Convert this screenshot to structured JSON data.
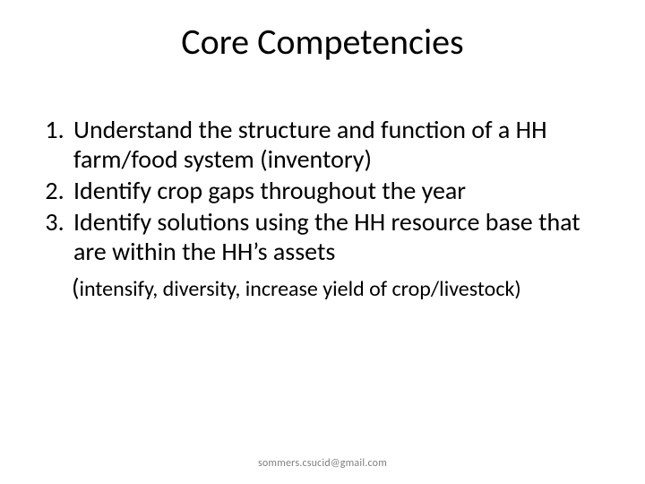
{
  "slide": {
    "title": "Core Competencies",
    "title_fontsize": 40,
    "title_color": "#000000",
    "background_color": "#ffffff",
    "list": {
      "type": "ordered",
      "fontsize": 28,
      "color": "#000000",
      "items": [
        "Understand the structure and function of a HH farm/food system (inventory)",
        "Identify crop gaps throughout  the year",
        "Identify solutions using  the HH resource base that are within the HH’s assets"
      ]
    },
    "paren_note": {
      "open_paren_fontsize": 28,
      "inner_fontsize": 24,
      "open": "(",
      "text": "intensify, diversity, increase yield of crop/livestock)"
    },
    "footer": {
      "text": "sommers.csucid@gmail.com",
      "fontsize": 12,
      "color": "#7f7f7f"
    }
  }
}
